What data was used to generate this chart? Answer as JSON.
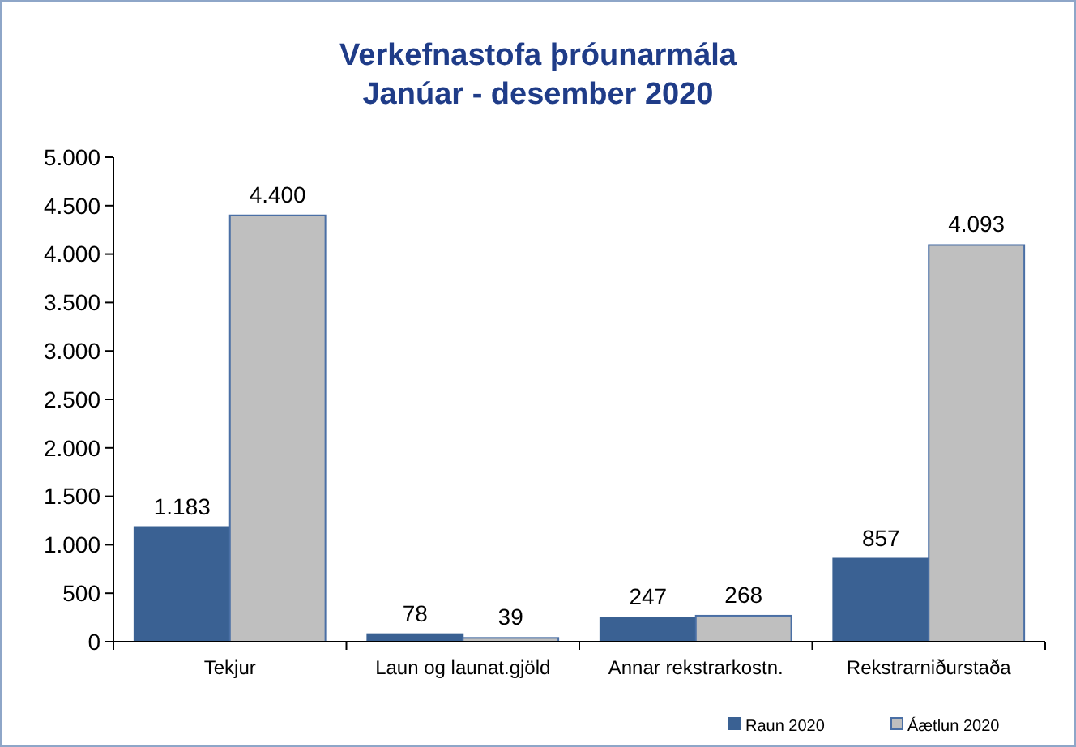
{
  "chart_data": {
    "type": "bar",
    "title": "Verkefnastofa þróunarmála",
    "subtitle": "Janúar - desember 2020",
    "categories": [
      "Tekjur",
      "Laun og launat.gjöld",
      "Annar rekstrarkostn.",
      "Rekstrarniðurstaða"
    ],
    "series": [
      {
        "name": "Raun 2020",
        "color": "#3a6193",
        "values": [
          1183,
          78,
          247,
          857
        ],
        "value_labels": [
          "1.183",
          "78",
          "247",
          "857"
        ]
      },
      {
        "name": "Áætlun 2020",
        "color": "#bfbfbf",
        "values": [
          4400,
          39,
          268,
          4093
        ],
        "value_labels": [
          "4.400",
          "39",
          "268",
          "4.093"
        ]
      }
    ],
    "ylim": [
      0,
      5000
    ],
    "yticks": [
      0,
      500,
      {
        "value": 1000,
        "label": "1.000"
      },
      {
        "value": 1500,
        "label": "1.500"
      },
      {
        "value": 2000,
        "label": "2.000"
      },
      {
        "value": 2500,
        "label": "2.500"
      },
      {
        "value": 3000,
        "label": "3.000"
      },
      {
        "value": 3500,
        "label": "3.500"
      },
      {
        "value": 4000,
        "label": "4.000"
      },
      {
        "value": 4500,
        "label": "4.500"
      },
      {
        "value": 5000,
        "label": "5.000"
      }
    ],
    "grid": false,
    "legend": "bottom right"
  }
}
